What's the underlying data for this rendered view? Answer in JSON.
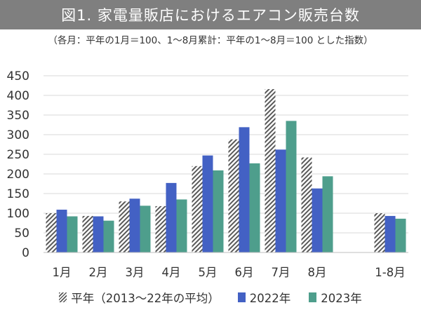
{
  "header": {
    "title": "図1. 家電量販店におけるエアコン販売台数",
    "subtitle": "（各月：平年の1月＝100、1〜8月累計：平年の1〜8月＝100 とした指数）"
  },
  "chart_data": {
    "type": "bar",
    "categories": [
      "1月",
      "2月",
      "3月",
      "4月",
      "5月",
      "6月",
      "7月",
      "8月",
      "",
      "1-8月"
    ],
    "ylim": [
      0,
      450
    ],
    "yticks": [
      0,
      50,
      100,
      150,
      200,
      250,
      300,
      350,
      400,
      450
    ],
    "grid": true,
    "legend_position": "bottom",
    "series": [
      {
        "name": "平年（2013〜22年の平均）",
        "color": "#595959",
        "pattern": "hatch",
        "values": [
          100,
          93,
          130,
          118,
          220,
          288,
          416,
          242,
          null,
          100
        ]
      },
      {
        "name": "2022年",
        "color": "#4361c4",
        "pattern": "solid",
        "values": [
          109,
          92,
          137,
          177,
          247,
          319,
          262,
          163,
          null,
          93
        ]
      },
      {
        "name": "2023年",
        "color": "#4e9e8c",
        "pattern": "solid",
        "values": [
          92,
          81,
          119,
          135,
          209,
          227,
          335,
          194,
          null,
          86
        ]
      }
    ]
  }
}
